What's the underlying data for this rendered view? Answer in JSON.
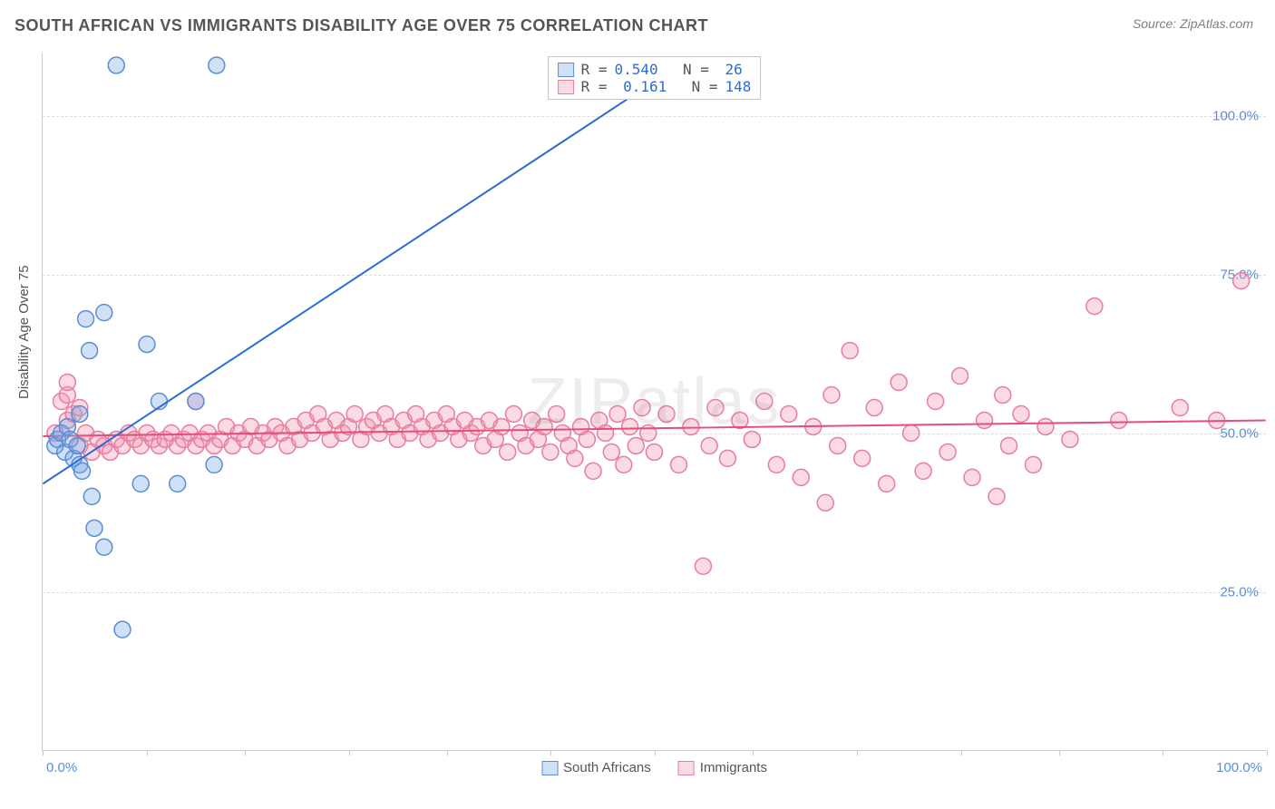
{
  "chart": {
    "type": "scatter",
    "title": "SOUTH AFRICAN VS IMMIGRANTS DISABILITY AGE OVER 75 CORRELATION CHART",
    "source_label": "Source: ZipAtlas.com",
    "yaxis_title": "Disability Age Over 75",
    "watermark": "ZIPatlas",
    "background_color": "#ffffff",
    "grid_color": "#dddddd",
    "axis_color": "#cccccc",
    "title_color": "#555555",
    "title_fontsize": 18,
    "axis_label_color": "#5b8dd6",
    "axis_label_fontsize": 15,
    "marker_radius": 9,
    "marker_stroke_width": 1.5,
    "line_width": 2,
    "xlim": [
      0,
      100
    ],
    "ylim": [
      0,
      110
    ],
    "yticks": [
      {
        "value": 25,
        "label": "25.0%"
      },
      {
        "value": 50,
        "label": "50.0%"
      },
      {
        "value": 75,
        "label": "75.0%"
      },
      {
        "value": 100,
        "label": "100.0%"
      }
    ],
    "xtick_positions": [
      0,
      8.5,
      16.5,
      25,
      33,
      41.5,
      50,
      58,
      66.5,
      75,
      83,
      91.5,
      100
    ],
    "xlabel_min": "0.0%",
    "xlabel_max": "100.0%",
    "series": {
      "south_africans": {
        "label": "South Africans",
        "color_fill": "rgba(120,165,225,0.35)",
        "color_stroke": "#5b8dd6",
        "line_color": "#2d6cd3",
        "R": "0.540",
        "N": "26",
        "trendline": {
          "x1": 0,
          "y1": 42,
          "x2": 52,
          "y2": 108
        },
        "points": [
          [
            1.0,
            48
          ],
          [
            1.2,
            49
          ],
          [
            1.5,
            50
          ],
          [
            1.8,
            47
          ],
          [
            2.0,
            51
          ],
          [
            2.2,
            49
          ],
          [
            2.5,
            46
          ],
          [
            2.8,
            48
          ],
          [
            3.0,
            45
          ],
          [
            3.0,
            53
          ],
          [
            3.2,
            44
          ],
          [
            3.5,
            68
          ],
          [
            3.8,
            63
          ],
          [
            4.0,
            40
          ],
          [
            4.2,
            35
          ],
          [
            5.0,
            69
          ],
          [
            5.0,
            32
          ],
          [
            6.0,
            108
          ],
          [
            6.5,
            19
          ],
          [
            8.0,
            42
          ],
          [
            8.5,
            64
          ],
          [
            9.5,
            55
          ],
          [
            11.0,
            42
          ],
          [
            12.5,
            55
          ],
          [
            14.0,
            45
          ],
          [
            14.2,
            108
          ]
        ]
      },
      "immigrants": {
        "label": "Immigrants",
        "color_fill": "rgba(240,150,175,0.35)",
        "color_stroke": "#e87da0",
        "line_color": "#e54d7b",
        "R": "0.161",
        "N": "148",
        "trendline": {
          "x1": 0,
          "y1": 49.5,
          "x2": 100,
          "y2": 52
        },
        "points": [
          [
            1.0,
            50
          ],
          [
            1.5,
            55
          ],
          [
            2.0,
            52
          ],
          [
            2.0,
            56
          ],
          [
            2.5,
            53
          ],
          [
            3.0,
            54
          ],
          [
            3.0,
            48
          ],
          [
            3.5,
            50
          ],
          [
            4.0,
            47
          ],
          [
            4.5,
            49
          ],
          [
            5.0,
            48
          ],
          [
            5.5,
            47
          ],
          [
            6.0,
            49
          ],
          [
            6.5,
            48
          ],
          [
            7.0,
            50
          ],
          [
            7.5,
            49
          ],
          [
            8.0,
            48
          ],
          [
            8.5,
            50
          ],
          [
            9.0,
            49
          ],
          [
            9.5,
            48
          ],
          [
            10.0,
            49
          ],
          [
            10.5,
            50
          ],
          [
            11.0,
            48
          ],
          [
            11.5,
            49
          ],
          [
            12.0,
            50
          ],
          [
            12.5,
            48
          ],
          [
            13.0,
            49
          ],
          [
            13.5,
            50
          ],
          [
            14.0,
            48
          ],
          [
            14.5,
            49
          ],
          [
            15.0,
            51
          ],
          [
            15.5,
            48
          ],
          [
            16.0,
            50
          ],
          [
            16.5,
            49
          ],
          [
            17.0,
            51
          ],
          [
            17.5,
            48
          ],
          [
            18.0,
            50
          ],
          [
            18.5,
            49
          ],
          [
            19.0,
            51
          ],
          [
            19.5,
            50
          ],
          [
            20.0,
            48
          ],
          [
            20.5,
            51
          ],
          [
            21.0,
            49
          ],
          [
            21.5,
            52
          ],
          [
            22.0,
            50
          ],
          [
            22.5,
            53
          ],
          [
            23.0,
            51
          ],
          [
            23.5,
            49
          ],
          [
            24.0,
            52
          ],
          [
            24.5,
            50
          ],
          [
            25.0,
            51
          ],
          [
            25.5,
            53
          ],
          [
            26.0,
            49
          ],
          [
            26.5,
            51
          ],
          [
            27.0,
            52
          ],
          [
            27.5,
            50
          ],
          [
            28.0,
            53
          ],
          [
            28.5,
            51
          ],
          [
            29.0,
            49
          ],
          [
            29.5,
            52
          ],
          [
            30.0,
            50
          ],
          [
            30.5,
            53
          ],
          [
            31.0,
            51
          ],
          [
            31.5,
            49
          ],
          [
            32.0,
            52
          ],
          [
            32.5,
            50
          ],
          [
            33.0,
            53
          ],
          [
            33.5,
            51
          ],
          [
            34.0,
            49
          ],
          [
            34.5,
            52
          ],
          [
            35.0,
            50
          ],
          [
            35.5,
            51
          ],
          [
            36.0,
            48
          ],
          [
            36.5,
            52
          ],
          [
            37.0,
            49
          ],
          [
            37.5,
            51
          ],
          [
            38.0,
            47
          ],
          [
            38.5,
            53
          ],
          [
            39.0,
            50
          ],
          [
            39.5,
            48
          ],
          [
            40.0,
            52
          ],
          [
            40.5,
            49
          ],
          [
            41.0,
            51
          ],
          [
            41.5,
            47
          ],
          [
            42.0,
            53
          ],
          [
            42.5,
            50
          ],
          [
            43.0,
            48
          ],
          [
            43.5,
            46
          ],
          [
            44.0,
            51
          ],
          [
            44.5,
            49
          ],
          [
            45.0,
            44
          ],
          [
            45.5,
            52
          ],
          [
            46.0,
            50
          ],
          [
            46.5,
            47
          ],
          [
            47.0,
            53
          ],
          [
            47.5,
            45
          ],
          [
            48.0,
            51
          ],
          [
            48.5,
            48
          ],
          [
            49.0,
            54
          ],
          [
            49.5,
            50
          ],
          [
            50.0,
            47
          ],
          [
            51.0,
            53
          ],
          [
            52.0,
            45
          ],
          [
            53.0,
            51
          ],
          [
            54.0,
            29
          ],
          [
            54.5,
            48
          ],
          [
            55.0,
            54
          ],
          [
            56.0,
            46
          ],
          [
            57.0,
            52
          ],
          [
            58.0,
            49
          ],
          [
            59.0,
            55
          ],
          [
            60.0,
            45
          ],
          [
            61.0,
            53
          ],
          [
            62.0,
            43
          ],
          [
            63.0,
            51
          ],
          [
            64.0,
            39
          ],
          [
            64.5,
            56
          ],
          [
            65.0,
            48
          ],
          [
            66.0,
            63
          ],
          [
            67.0,
            46
          ],
          [
            68.0,
            54
          ],
          [
            69.0,
            42
          ],
          [
            70.0,
            58
          ],
          [
            71.0,
            50
          ],
          [
            72.0,
            44
          ],
          [
            73.0,
            55
          ],
          [
            74.0,
            47
          ],
          [
            75.0,
            59
          ],
          [
            76.0,
            43
          ],
          [
            77.0,
            52
          ],
          [
            78.0,
            40
          ],
          [
            78.5,
            56
          ],
          [
            79.0,
            48
          ],
          [
            80.0,
            53
          ],
          [
            81.0,
            45
          ],
          [
            82.0,
            51
          ],
          [
            84.0,
            49
          ],
          [
            86.0,
            70
          ],
          [
            88.0,
            52
          ],
          [
            93.0,
            54
          ],
          [
            96.0,
            52
          ],
          [
            98.0,
            74
          ],
          [
            50.0,
            108
          ],
          [
            51.5,
            108
          ],
          [
            52.5,
            108
          ],
          [
            53.5,
            108
          ],
          [
            12.5,
            55
          ],
          [
            2.0,
            58
          ]
        ]
      }
    }
  }
}
